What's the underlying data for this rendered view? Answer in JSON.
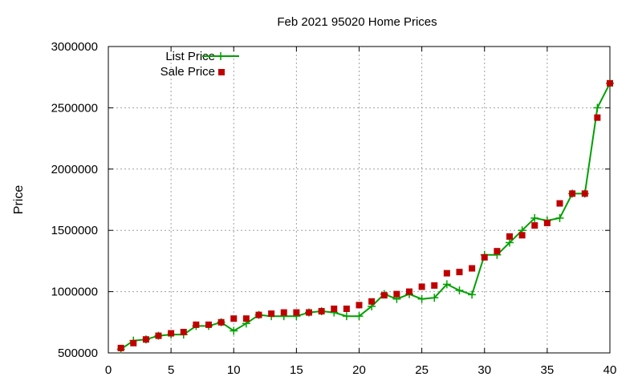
{
  "chart_data": {
    "type": "line",
    "title": "Feb 2021 95020 Home Prices",
    "xlabel": "",
    "ylabel": "Price",
    "xlim": [
      0,
      40
    ],
    "ylim": [
      500000,
      3000000
    ],
    "x_ticks": [
      0,
      5,
      10,
      15,
      20,
      25,
      30,
      35,
      40
    ],
    "y_ticks": [
      500000,
      1000000,
      1500000,
      2000000,
      2500000,
      3000000
    ],
    "x_tick_labels": [
      "0",
      "5",
      "10",
      "15",
      "20",
      "25",
      "30",
      "35",
      "40"
    ],
    "y_tick_labels": [
      "500000",
      "1000000",
      "1500000",
      "2000000",
      "2500000",
      "3000000"
    ],
    "grid": true,
    "legend_position": "top-left",
    "x": [
      1,
      2,
      3,
      4,
      5,
      6,
      7,
      8,
      9,
      10,
      11,
      12,
      13,
      14,
      15,
      16,
      17,
      18,
      19,
      20,
      21,
      22,
      23,
      24,
      25,
      26,
      27,
      28,
      29,
      30,
      31,
      32,
      33,
      34,
      35,
      36,
      37,
      38,
      39,
      40
    ],
    "series": [
      {
        "name": "List Price",
        "style": "line+cross",
        "color": "#00a000",
        "values": [
          530000,
          600000,
          610000,
          640000,
          650000,
          650000,
          720000,
          720000,
          750000,
          680000,
          740000,
          810000,
          800000,
          800000,
          800000,
          830000,
          840000,
          830000,
          800000,
          800000,
          880000,
          980000,
          940000,
          980000,
          940000,
          950000,
          1060000,
          1010000,
          975000,
          1300000,
          1300000,
          1400000,
          1500000,
          1600000,
          1580000,
          1600000,
          1800000,
          1800000,
          2500000,
          2700000
        ]
      },
      {
        "name": "Sale Price",
        "style": "square-points",
        "color": "#c00000",
        "values": [
          540000,
          580000,
          610000,
          640000,
          660000,
          670000,
          730000,
          730000,
          750000,
          780000,
          780000,
          810000,
          820000,
          830000,
          830000,
          830000,
          840000,
          860000,
          860000,
          890000,
          920000,
          970000,
          980000,
          1000000,
          1040000,
          1050000,
          1150000,
          1160000,
          1190000,
          1280000,
          1330000,
          1450000,
          1460000,
          1540000,
          1560000,
          1720000,
          1800000,
          1800000,
          2420000,
          2700000
        ]
      }
    ]
  }
}
